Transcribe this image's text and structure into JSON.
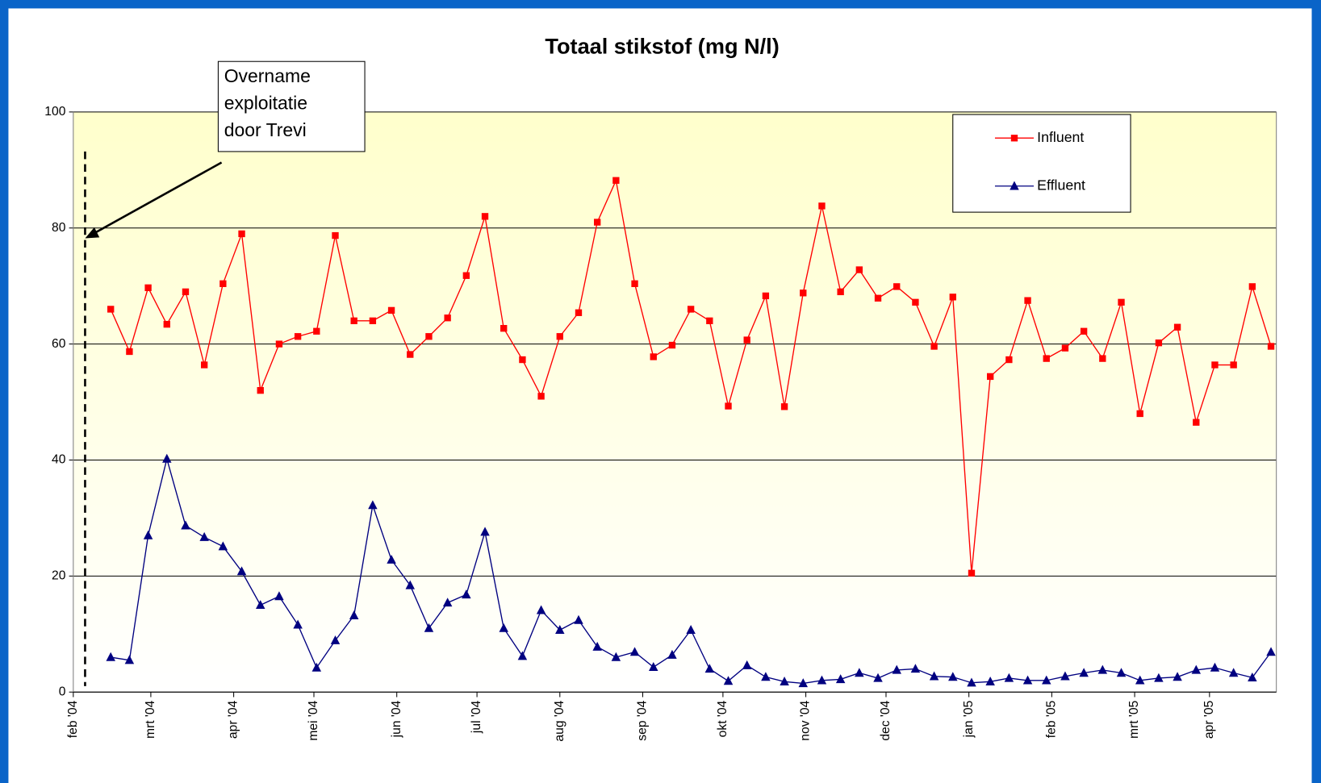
{
  "chart_data": {
    "type": "line",
    "title": "Totaal stikstof (mg N/l)",
    "annotation": [
      "Overname",
      "exploitatie",
      "door Trevi"
    ],
    "x": [
      14,
      21,
      28,
      35,
      42,
      49,
      56,
      63,
      70,
      77,
      84,
      91,
      98,
      105,
      112,
      119,
      126,
      133,
      140,
      147,
      154,
      161,
      168,
      175,
      182,
      189,
      196,
      203,
      210,
      217,
      224,
      231,
      238,
      245,
      252,
      259,
      266,
      273,
      280,
      287,
      294,
      301,
      308,
      315,
      322,
      329,
      336,
      343,
      350,
      357,
      364,
      371,
      378,
      385,
      392,
      399,
      406,
      413,
      420,
      427,
      434,
      441,
      448
    ],
    "series": [
      {
        "name": "Influent",
        "color": "#ff0000",
        "marker": "square",
        "values": [
          66,
          58.7,
          69.7,
          63.4,
          69,
          56.4,
          70.4,
          79,
          52,
          60,
          61.3,
          62.2,
          78.7,
          64,
          64,
          65.8,
          58.2,
          61.3,
          64.5,
          71.8,
          82,
          62.7,
          57.3,
          51,
          61.3,
          65.4,
          81,
          88.2,
          70.4,
          57.8,
          59.8,
          66,
          64,
          49.3,
          60.7,
          68.3,
          49.2,
          68.8,
          83.8,
          69,
          72.8,
          67.9,
          69.9,
          67.2,
          59.6,
          68.1,
          20.5,
          54.4,
          57.3,
          67.5,
          57.5,
          59.3,
          62.2,
          57.5,
          67.2,
          48,
          60.2,
          62.9,
          46.5,
          56.4,
          56.4,
          69.9,
          59.6
        ]
      },
      {
        "name": "Effluent",
        "color": "#000080",
        "marker": "triangle",
        "values": [
          6,
          5.5,
          27,
          40.2,
          28.7,
          26.7,
          25.1,
          20.8,
          15,
          16.5,
          11.6,
          4.2,
          8.9,
          13.2,
          32.2,
          22.8,
          18.4,
          11,
          15.4,
          16.8,
          27.6,
          11,
          6.2,
          14.1,
          10.7,
          12.4,
          7.8,
          6,
          6.9,
          4.3,
          6.4,
          10.7,
          4,
          1.9,
          4.6,
          2.6,
          1.8,
          1.5,
          2,
          2.2,
          3.3,
          2.4,
          3.8,
          4,
          2.7,
          2.6,
          1.6,
          1.8,
          2.4,
          2,
          2,
          2.7,
          3.3,
          3.8,
          3.3,
          2,
          2.4,
          2.6,
          3.8,
          4.2,
          3.3,
          2.5,
          6.9
        ]
      }
    ],
    "xlim": [
      0,
      450
    ],
    "xticks": [
      {
        "value": 0,
        "label": "feb '04"
      },
      {
        "value": 29,
        "label": "mrt '04"
      },
      {
        "value": 60,
        "label": "apr '04"
      },
      {
        "value": 90,
        "label": "mei '04"
      },
      {
        "value": 121,
        "label": "jun '04"
      },
      {
        "value": 151,
        "label": "jul '04"
      },
      {
        "value": 182,
        "label": "aug '04"
      },
      {
        "value": 213,
        "label": "sep '04"
      },
      {
        "value": 243,
        "label": "okt '04"
      },
      {
        "value": 274,
        "label": "nov '04"
      },
      {
        "value": 304,
        "label": "dec '04"
      },
      {
        "value": 335,
        "label": "jan '05"
      },
      {
        "value": 366,
        "label": "feb '05"
      },
      {
        "value": 397,
        "label": "mrt '05"
      },
      {
        "value": 425,
        "label": "apr '05"
      }
    ],
    "ylim": [
      0,
      100
    ],
    "yticks": [
      0,
      20,
      40,
      60,
      80,
      100
    ],
    "grid": true,
    "legend": "upper right"
  }
}
